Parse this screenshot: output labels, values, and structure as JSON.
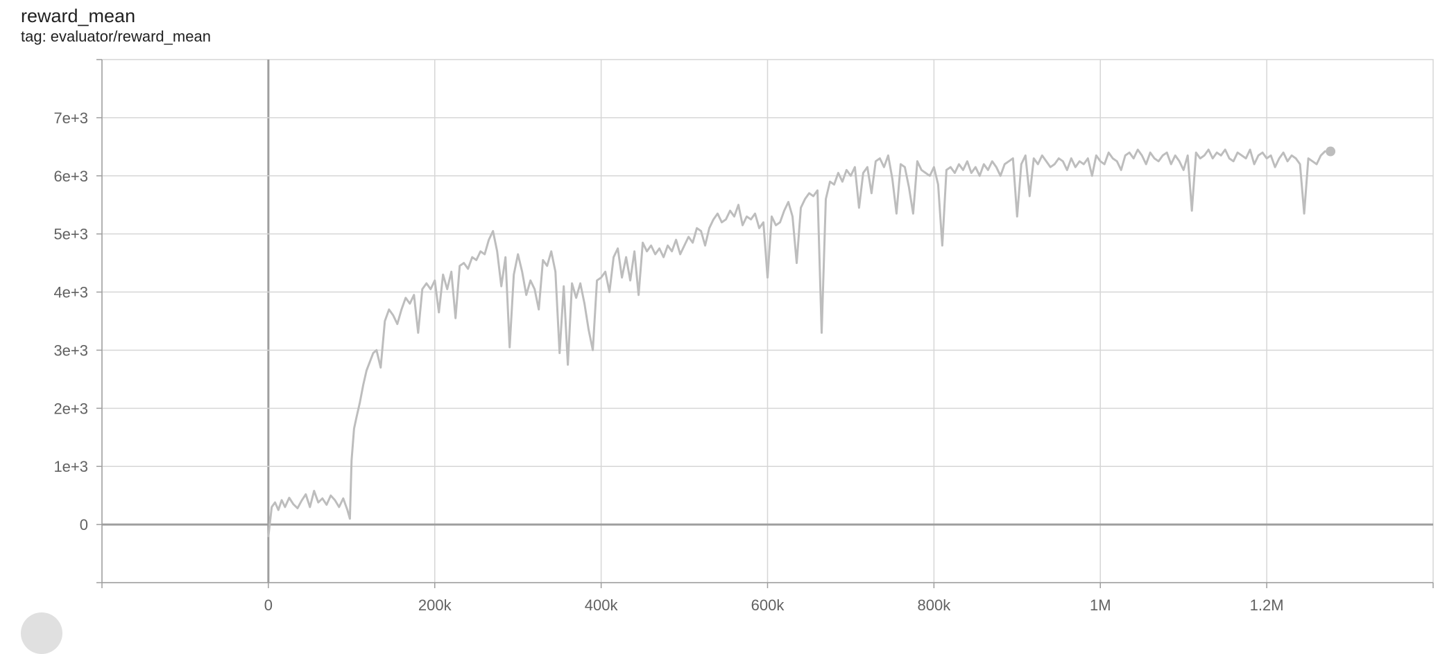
{
  "card": {
    "title": "reward_mean",
    "tag": "tag: evaluator/reward_mean"
  },
  "chart_data": {
    "type": "line",
    "title": "reward_mean",
    "subtitle": "tag: evaluator/reward_mean",
    "xlabel": "",
    "ylabel": "",
    "xlim": [
      -200000,
      1400000
    ],
    "ylim": [
      -1000,
      8000
    ],
    "x_ticks": [
      {
        "value": 0,
        "label": "0"
      },
      {
        "value": 200000,
        "label": "200k"
      },
      {
        "value": 400000,
        "label": "400k"
      },
      {
        "value": 600000,
        "label": "600k"
      },
      {
        "value": 800000,
        "label": "800k"
      },
      {
        "value": 1000000,
        "label": "1M"
      },
      {
        "value": 1200000,
        "label": "1.2M"
      }
    ],
    "y_ticks": [
      {
        "value": 0,
        "label": "0"
      },
      {
        "value": 1000,
        "label": "1e+3"
      },
      {
        "value": 2000,
        "label": "2e+3"
      },
      {
        "value": 3000,
        "label": "3e+3"
      },
      {
        "value": 4000,
        "label": "4e+3"
      },
      {
        "value": 5000,
        "label": "5e+3"
      },
      {
        "value": 6000,
        "label": "6e+3"
      },
      {
        "value": 7000,
        "label": "7e+3"
      }
    ],
    "grid": true,
    "legend": "none",
    "series": [
      {
        "color": "#bdbdbd",
        "x": [
          0,
          4000,
          8000,
          12000,
          16000,
          20000,
          25000,
          30000,
          35000,
          40000,
          45000,
          50000,
          55000,
          60000,
          65000,
          70000,
          75000,
          80000,
          85000,
          90000,
          95000,
          98000,
          100000,
          103000,
          106000,
          110000,
          114000,
          118000,
          122000,
          126000,
          130000,
          135000,
          140000,
          145000,
          150000,
          155000,
          160000,
          165000,
          170000,
          175000,
          180000,
          185000,
          190000,
          195000,
          200000,
          205000,
          210000,
          215000,
          220000,
          225000,
          230000,
          235000,
          240000,
          245000,
          250000,
          255000,
          260000,
          265000,
          270000,
          275000,
          280000,
          285000,
          290000,
          295000,
          300000,
          305000,
          310000,
          315000,
          320000,
          325000,
          330000,
          335000,
          340000,
          345000,
          350000,
          355000,
          360000,
          365000,
          370000,
          375000,
          380000,
          385000,
          390000,
          395000,
          400000,
          405000,
          410000,
          415000,
          420000,
          425000,
          430000,
          435000,
          440000,
          445000,
          450000,
          455000,
          460000,
          465000,
          470000,
          475000,
          480000,
          485000,
          490000,
          495000,
          500000,
          505000,
          510000,
          515000,
          520000,
          525000,
          530000,
          535000,
          540000,
          545000,
          550000,
          555000,
          560000,
          565000,
          570000,
          575000,
          580000,
          585000,
          590000,
          595000,
          600000,
          605000,
          610000,
          615000,
          620000,
          625000,
          630000,
          635000,
          640000,
          645000,
          650000,
          655000,
          660000,
          665000,
          670000,
          675000,
          680000,
          685000,
          690000,
          695000,
          700000,
          705000,
          710000,
          715000,
          720000,
          725000,
          730000,
          735000,
          740000,
          745000,
          750000,
          755000,
          760000,
          765000,
          770000,
          775000,
          780000,
          785000,
          790000,
          795000,
          800000,
          805000,
          810000,
          815000,
          820000,
          825000,
          830000,
          835000,
          840000,
          845000,
          850000,
          855000,
          860000,
          865000,
          870000,
          875000,
          880000,
          885000,
          890000,
          895000,
          900000,
          905000,
          910000,
          915000,
          920000,
          925000,
          930000,
          935000,
          940000,
          945000,
          950000,
          955000,
          960000,
          965000,
          970000,
          975000,
          980000,
          985000,
          990000,
          995000,
          1000000,
          1005000,
          1010000,
          1015000,
          1020000,
          1025000,
          1030000,
          1035000,
          1040000,
          1045000,
          1050000,
          1055000,
          1060000,
          1065000,
          1070000,
          1075000,
          1080000,
          1085000,
          1090000,
          1095000,
          1100000,
          1105000,
          1110000,
          1115000,
          1120000,
          1125000,
          1130000,
          1135000,
          1140000,
          1145000,
          1150000,
          1155000,
          1160000,
          1165000,
          1170000,
          1175000,
          1180000,
          1185000,
          1190000,
          1195000,
          1200000,
          1205000,
          1210000,
          1215000,
          1220000,
          1225000,
          1230000,
          1235000,
          1240000,
          1245000,
          1250000,
          1255000,
          1260000,
          1265000,
          1270000
        ],
        "y": [
          -200,
          300,
          380,
          250,
          420,
          300,
          460,
          350,
          280,
          410,
          520,
          300,
          580,
          380,
          450,
          340,
          500,
          420,
          300,
          450,
          250,
          100,
          1100,
          1650,
          1850,
          2100,
          2400,
          2650,
          2800,
          2950,
          3000,
          2700,
          3500,
          3700,
          3600,
          3450,
          3700,
          3900,
          3800,
          3950,
          3300,
          4050,
          4150,
          4050,
          4200,
          3650,
          4300,
          4050,
          4350,
          3550,
          4450,
          4500,
          4400,
          4600,
          4550,
          4700,
          4650,
          4900,
          5050,
          4700,
          4100,
          4600,
          3050,
          4300,
          4650,
          4350,
          3950,
          4200,
          4050,
          3700,
          4550,
          4450,
          4700,
          4350,
          2950,
          4100,
          2750,
          4150,
          3900,
          4150,
          3800,
          3350,
          3000,
          4200,
          4250,
          4350,
          4000,
          4600,
          4750,
          4250,
          4600,
          4200,
          4700,
          3950,
          4850,
          4700,
          4800,
          4650,
          4750,
          4600,
          4800,
          4700,
          4900,
          4650,
          4800,
          4950,
          4850,
          5100,
          5050,
          4800,
          5100,
          5250,
          5350,
          5200,
          5250,
          5400,
          5300,
          5500,
          5150,
          5300,
          5250,
          5350,
          5100,
          5200,
          4250,
          5300,
          5150,
          5200,
          5400,
          5550,
          5300,
          4500,
          5450,
          5600,
          5700,
          5650,
          5750,
          3300,
          5600,
          5900,
          5850,
          6050,
          5900,
          6100,
          6000,
          6150,
          5450,
          6050,
          6150,
          5700,
          6250,
          6300,
          6150,
          6350,
          5950,
          5350,
          6200,
          6150,
          5800,
          5350,
          6250,
          6100,
          6050,
          6000,
          6150,
          5850,
          4800,
          6100,
          6150,
          6050,
          6200,
          6100,
          6250,
          6050,
          6150,
          6000,
          6200,
          6100,
          6250,
          6150,
          6000,
          6200,
          6250,
          6300,
          5300,
          6200,
          6350,
          5650,
          6300,
          6200,
          6350,
          6250,
          6150,
          6200,
          6300,
          6250,
          6100,
          6300,
          6150,
          6250,
          6200,
          6300,
          6000,
          6350,
          6250,
          6200,
          6400,
          6300,
          6250,
          6100,
          6350,
          6400,
          6300,
          6450,
          6350,
          6200,
          6400,
          6300,
          6250,
          6350,
          6400,
          6200,
          6350,
          6250,
          6100,
          6350,
          5400,
          6400,
          6300,
          6350,
          6450,
          6300,
          6400,
          6350,
          6450,
          6300,
          6250,
          6400,
          6350,
          6300,
          6450,
          6200,
          6350,
          6400,
          6300,
          6350,
          6150,
          6300,
          6400,
          6250,
          6350,
          6300,
          6200,
          5350,
          6300,
          6250,
          6200,
          6350,
          6420
        ]
      }
    ]
  }
}
